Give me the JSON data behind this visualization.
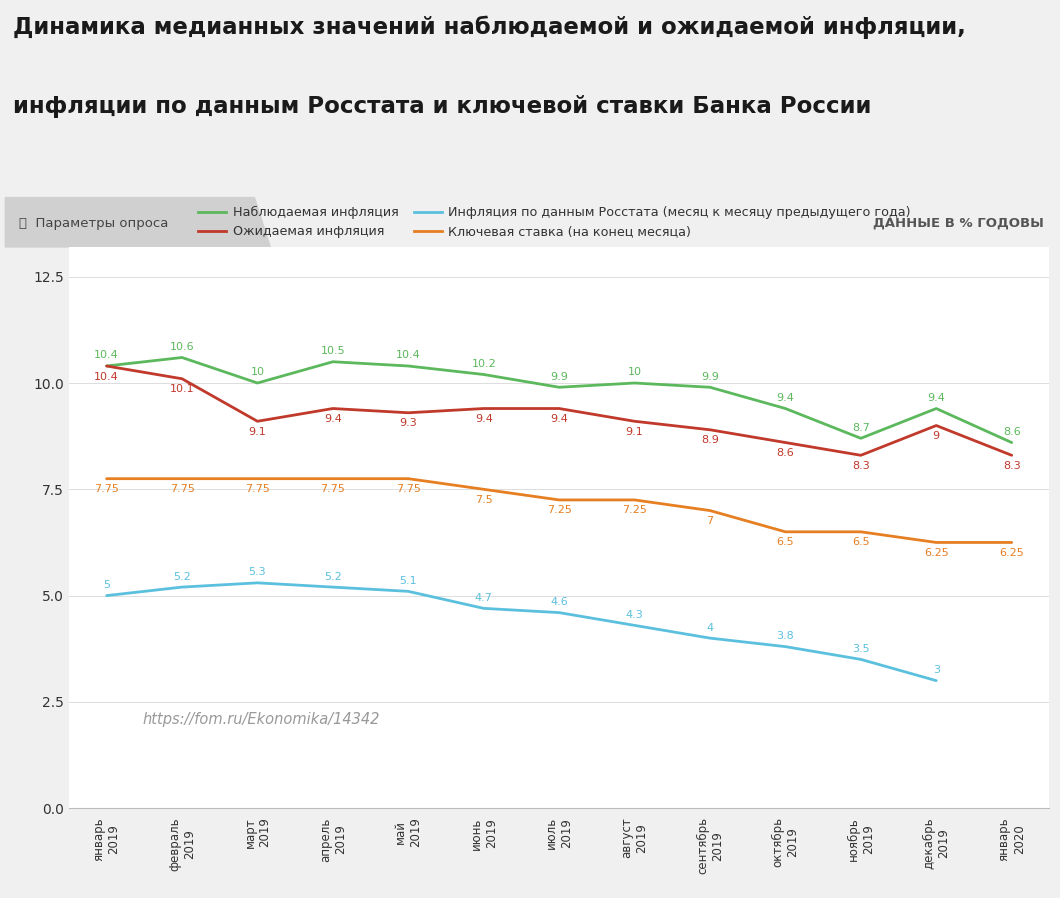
{
  "title_line1": "Динамика медианных значений наблюдаемой и ожидаемой инфляции,",
  "title_line2": "инфляции по данным Росстата и ключевой ставки Банка России",
  "subtitle_left": "ⓘ  Параметры опроса",
  "subtitle_right": "ДАННЫЕ В % ГОДОВЫ",
  "url_text": "https://fom.ru/Ekonomika/14342",
  "x_labels": [
    "январь\n2019",
    "февраль\n2019",
    "март\n2019",
    "апрель\n2019",
    "май\n2019",
    "июнь\n2019",
    "июль\n2019",
    "август\n2019",
    "сентябрь\n2019",
    "октябрь\n2019",
    "ноябрь\n2019",
    "декабрь\n2019",
    "январь\n2020"
  ],
  "nablyudaemaya": [
    10.4,
    10.6,
    10.0,
    10.5,
    10.4,
    10.2,
    9.9,
    10.0,
    9.9,
    9.4,
    8.7,
    9.4,
    8.6
  ],
  "ozhidaemaya": [
    10.4,
    10.1,
    9.1,
    9.4,
    9.3,
    9.4,
    9.4,
    9.1,
    8.9,
    8.6,
    8.3,
    9.0,
    8.3
  ],
  "rosstat": [
    5.0,
    5.2,
    5.3,
    5.2,
    5.1,
    4.7,
    4.6,
    4.3,
    4.0,
    3.8,
    3.5,
    3.0,
    null
  ],
  "klyuchevaya": [
    7.75,
    7.75,
    7.75,
    7.75,
    7.75,
    7.5,
    7.25,
    7.25,
    7.0,
    6.5,
    6.5,
    6.25,
    6.25
  ],
  "color_nablyudaemaya": "#5cb85c",
  "color_ozhidaemaya": "#c0392b",
  "color_rosstat": "#5bc0de",
  "color_klyuchevaya": "#e67e22",
  "legend_nablyudaemaya": "Наблюдаемая инфляция",
  "legend_ozhidaemaya": "Ожидаемая инфляция",
  "legend_rosstat": "Инфляция по данным Росстата (месяц к месяцу предыдущего года)",
  "legend_klyuchevaya": "Ключевая ставка (на конец месяца)",
  "ylim": [
    0,
    13.2
  ],
  "yticks": [
    0,
    2.5,
    5.0,
    7.5,
    10.0,
    12.5
  ],
  "background_color": "#f0f0f0",
  "plot_bg_color": "#ffffff",
  "grid_color": "#dddddd",
  "title_bg": "#f0f0f0",
  "subbar_bg": "#e0e0e0"
}
